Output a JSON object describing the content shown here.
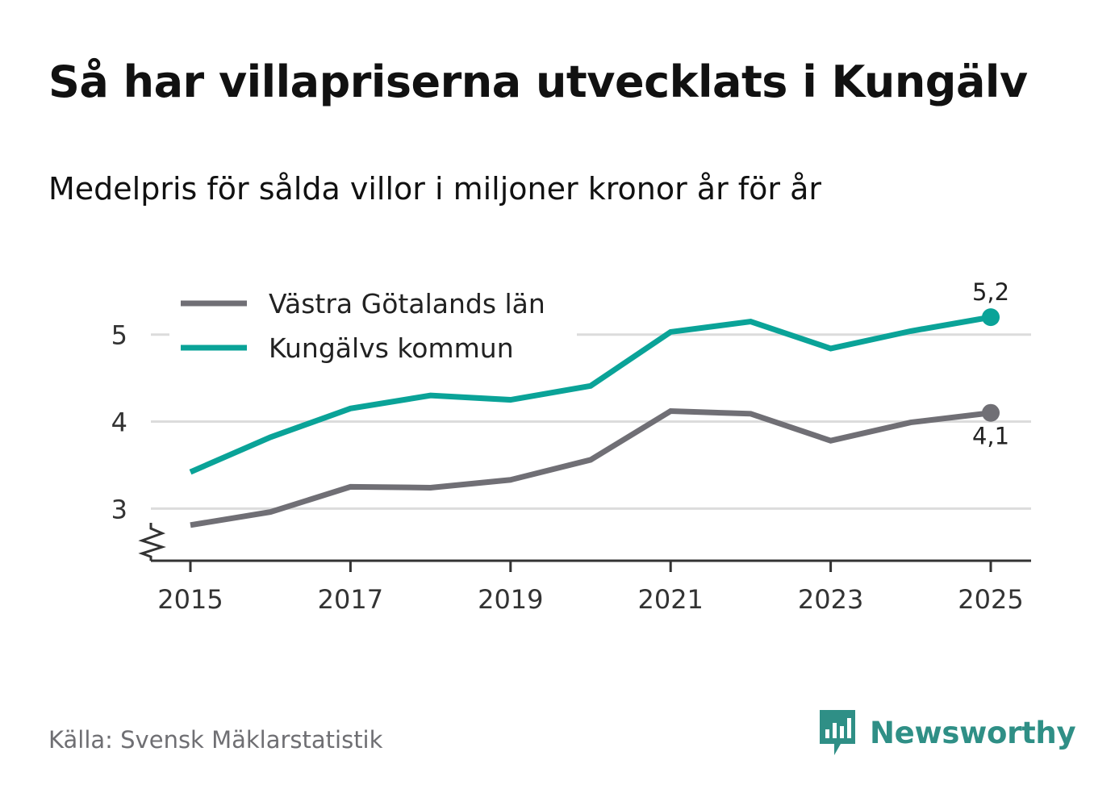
{
  "title": "Så har villapriserna utvecklats i Kungälv",
  "subtitle": "Medelpris för sålda villor i miljoner kronor år för år",
  "source": "Källa: Svensk Mäklarstatistik",
  "brand": {
    "name": "Newsworthy",
    "icon": "newsworthy-logo-icon"
  },
  "colors": {
    "vgl": "#706f75",
    "kungalv": "#0aa398",
    "grid": "#dcdcdc",
    "axis": "#333333"
  },
  "chart_data": {
    "type": "line",
    "x": [
      2015,
      2016,
      2017,
      2018,
      2019,
      2020,
      2021,
      2022,
      2023,
      2024,
      2025
    ],
    "x_ticks": [
      "2015",
      "2017",
      "2019",
      "2021",
      "2023",
      "2025"
    ],
    "y_ticks": [
      "3",
      "4",
      "5"
    ],
    "ylim": [
      2.4,
      5.6
    ],
    "axis_break": true,
    "series": [
      {
        "name": "Västra Götalands län",
        "values": [
          2.81,
          2.96,
          3.25,
          3.24,
          3.33,
          3.56,
          4.12,
          4.09,
          3.78,
          3.99,
          4.1
        ],
        "end_label": "4,1"
      },
      {
        "name": "Kungälvs kommun",
        "values": [
          3.42,
          3.82,
          4.15,
          4.3,
          4.25,
          4.41,
          5.03,
          5.15,
          4.84,
          5.04,
          5.2
        ],
        "end_label": "5,2"
      }
    ],
    "legend_position": "top-left",
    "title": "Så har villapriserna utvecklats i Kungälv"
  }
}
